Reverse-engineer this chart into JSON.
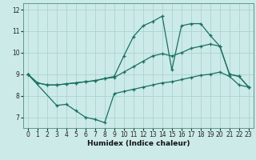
{
  "xlabel": "Humidex (Indice chaleur)",
  "xlim": [
    -0.5,
    23.5
  ],
  "ylim": [
    6.5,
    12.3
  ],
  "xticks": [
    0,
    1,
    2,
    3,
    4,
    5,
    6,
    7,
    8,
    9,
    10,
    11,
    12,
    13,
    14,
    15,
    16,
    17,
    18,
    19,
    20,
    21,
    22,
    23
  ],
  "yticks": [
    7,
    8,
    9,
    10,
    11,
    12
  ],
  "background_color": "#cceae8",
  "grid_color": "#aad4d0",
  "line_color": "#1a7060",
  "lines": [
    {
      "x": [
        0,
        1,
        2,
        3,
        4,
        5,
        6,
        7,
        8,
        9,
        10,
        11,
        12,
        13,
        14,
        15,
        16,
        17,
        18,
        19,
        20,
        21,
        22,
        23
      ],
      "y": [
        9.0,
        8.6,
        8.5,
        8.5,
        8.55,
        8.6,
        8.65,
        8.7,
        8.8,
        8.85,
        9.1,
        9.35,
        9.6,
        9.85,
        9.95,
        9.85,
        10.0,
        10.2,
        10.3,
        10.4,
        10.3,
        9.0,
        8.9,
        8.4
      ]
    },
    {
      "x": [
        0,
        1,
        2,
        3,
        4,
        5,
        6,
        7,
        8,
        9,
        10,
        11,
        12,
        13,
        14,
        15,
        16,
        17,
        18,
        19,
        20,
        21,
        22,
        23
      ],
      "y": [
        9.0,
        8.6,
        8.5,
        8.5,
        8.55,
        8.6,
        8.65,
        8.7,
        8.8,
        8.9,
        9.85,
        10.75,
        11.25,
        11.45,
        11.7,
        9.2,
        11.25,
        11.35,
        11.35,
        10.8,
        10.3,
        9.0,
        8.9,
        8.4
      ]
    },
    {
      "x": [
        0,
        3,
        4,
        5,
        6,
        7,
        8,
        9,
        10,
        11,
        12,
        13,
        14,
        15,
        16,
        17,
        18,
        19,
        20,
        21,
        22,
        23
      ],
      "y": [
        9.0,
        7.55,
        7.6,
        7.3,
        7.0,
        6.9,
        6.75,
        8.1,
        8.2,
        8.3,
        8.4,
        8.5,
        8.6,
        8.65,
        8.75,
        8.85,
        8.95,
        9.0,
        9.1,
        8.9,
        8.5,
        8.4
      ]
    }
  ]
}
